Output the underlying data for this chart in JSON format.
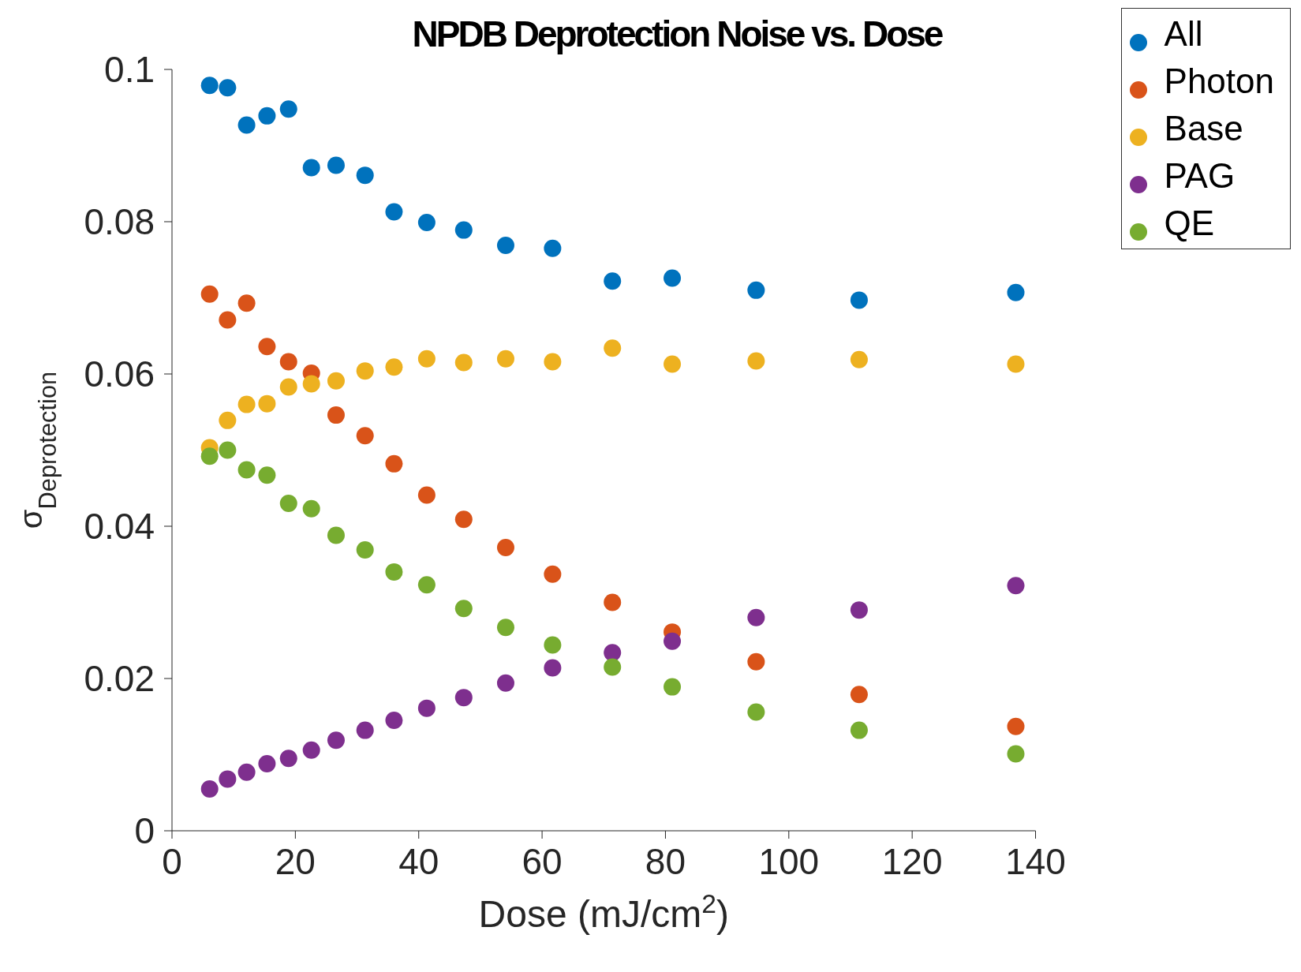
{
  "chart_data": {
    "type": "scatter",
    "title": "NPDB Deprotection Noise vs. Dose",
    "xlabel": "Dose (mJ/cm$^{2}$)",
    "ylabel": "σ$_{Deprotection}$",
    "x": [
      6.1,
      9.0,
      12.1,
      15.4,
      18.9,
      22.6,
      26.6,
      31.3,
      36.0,
      41.3,
      47.3,
      54.1,
      61.7,
      71.4,
      81.1,
      94.7,
      111.4,
      136.8
    ],
    "series": [
      {
        "name": "All",
        "color": "#0072bd",
        "values": [
          0.0979,
          0.0976,
          0.0927,
          0.0939,
          0.0948,
          0.0871,
          0.0874,
          0.0861,
          0.0813,
          0.0799,
          0.0789,
          0.0769,
          0.0765,
          0.0722,
          0.0726,
          0.071,
          0.0697,
          0.0707
        ]
      },
      {
        "name": "Photon",
        "color": "#d95319",
        "values": [
          0.0705,
          0.0671,
          0.0693,
          0.0636,
          0.0616,
          0.0601,
          0.0546,
          0.0519,
          0.0482,
          0.0441,
          0.0409,
          0.0372,
          0.0337,
          0.03,
          0.0261,
          0.0222,
          0.0179,
          0.0137
        ]
      },
      {
        "name": "Base",
        "color": "#edb120",
        "values": [
          0.0503,
          0.0539,
          0.056,
          0.0561,
          0.0583,
          0.0587,
          0.0591,
          0.0604,
          0.0609,
          0.062,
          0.0615,
          0.062,
          0.0616,
          0.0634,
          0.0613,
          0.0617,
          0.0619,
          0.0613
        ]
      },
      {
        "name": "PAG",
        "color": "#7e2f8e",
        "values": [
          0.0055,
          0.0068,
          0.0077,
          0.0088,
          0.0095,
          0.0106,
          0.0119,
          0.0132,
          0.0145,
          0.0161,
          0.0175,
          0.0194,
          0.0214,
          0.0234,
          0.0249,
          0.028,
          0.029,
          0.0322
        ]
      },
      {
        "name": "QE",
        "color": "#77ac30",
        "values": [
          0.0492,
          0.05,
          0.0474,
          0.0467,
          0.043,
          0.0423,
          0.0388,
          0.0369,
          0.034,
          0.0323,
          0.0292,
          0.0267,
          0.0244,
          0.0215,
          0.0189,
          0.0156,
          0.0132,
          0.0101
        ]
      }
    ],
    "xlim": [
      0,
      140
    ],
    "xticks": [
      0,
      20,
      40,
      60,
      80,
      100,
      120,
      140
    ],
    "ylim": [
      0,
      0.1
    ],
    "yticks": [
      0,
      0.02,
      0.04,
      0.06,
      0.08,
      0.1
    ],
    "grid": false,
    "legend": "top right",
    "marker": "circle"
  }
}
